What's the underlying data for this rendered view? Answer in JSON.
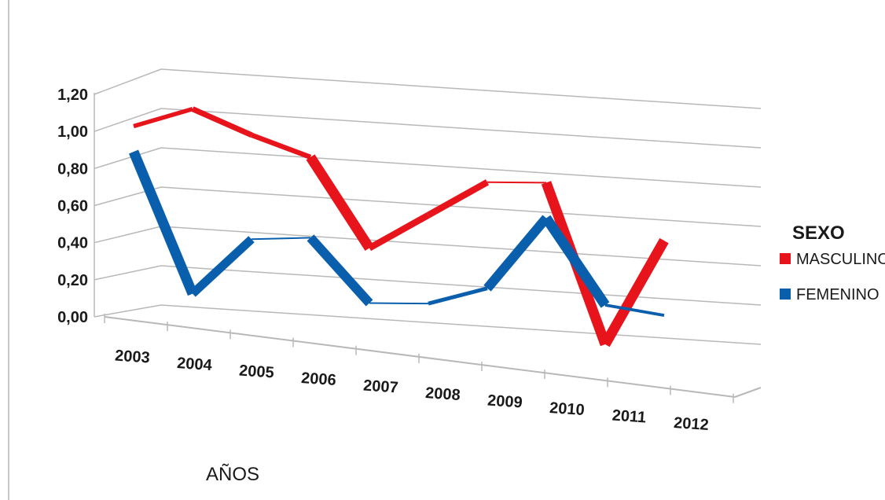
{
  "chart_data": {
    "type": "line",
    "subtype": "3d-line",
    "categories": [
      "2003",
      "2004",
      "2005",
      "2006",
      "2007",
      "2008",
      "2009",
      "2010",
      "2011",
      "2012"
    ],
    "xlabel": "AÑOS",
    "ylabel": "",
    "ylim": [
      0,
      1.2
    ],
    "yticks": [
      "0,00",
      "0,20",
      "0,40",
      "0,60",
      "0,80",
      "1,00",
      "1,20"
    ],
    "grid": true,
    "legend": {
      "title": "SEXO",
      "placement": "right"
    },
    "series": [
      {
        "name": "MASCULINO",
        "color": "#e8141b",
        "values": [
          0.95,
          1.06,
          0.95,
          0.86,
          0.42,
          0.61,
          0.8,
          0.82,
          0.02,
          0.57
        ]
      },
      {
        "name": "FEMENINO",
        "color": "#0a5fad",
        "values": [
          0.82,
          0.12,
          0.42,
          0.45,
          0.14,
          0.16,
          0.26,
          0.64,
          0.22,
          0.19
        ]
      }
    ]
  }
}
